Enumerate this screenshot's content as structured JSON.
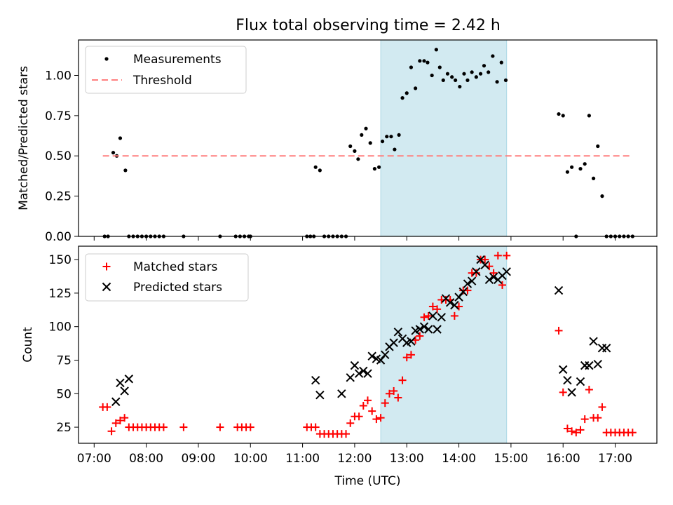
{
  "title": "Flux total observing time = 2.42 h",
  "colors": {
    "band": "#add8e6",
    "threshold": "#ff7f7f",
    "matched": "#ff0000",
    "predicted": "#000000",
    "measurement": "#000000"
  },
  "chart_data": [
    {
      "type": "scatter",
      "ylabel": "Matched/Predicted stars",
      "xlabel": "",
      "ylim": [
        0,
        1.22
      ],
      "yticks": [
        "0.00",
        "0.25",
        "0.50",
        "0.75",
        "1.00"
      ],
      "legend_position": "top-left",
      "legend": [
        "Measurements",
        "Threshold"
      ],
      "threshold": {
        "name": "Threshold",
        "y": 0.5,
        "x_start": "07:10",
        "x_end": "17:20"
      },
      "highlight": {
        "x_start": "12:30",
        "x_end": "14:55"
      },
      "series": [
        {
          "name": "Measurements",
          "x": [
            "07:12",
            "07:16",
            "07:22",
            "07:26",
            "07:30",
            "07:36",
            "07:40",
            "07:45",
            "07:50",
            "07:55",
            "08:00",
            "08:05",
            "08:10",
            "08:15",
            "08:20",
            "08:43",
            "09:25",
            "09:43",
            "09:48",
            "09:53",
            "09:58",
            "10:00",
            "11:05",
            "11:09",
            "11:13",
            "11:15",
            "11:20",
            "11:25",
            "11:30",
            "11:35",
            "11:40",
            "11:45",
            "11:50",
            "11:55",
            "12:00",
            "12:04",
            "12:08",
            "12:13",
            "12:18",
            "12:23",
            "12:28",
            "12:32",
            "12:37",
            "12:42",
            "12:46",
            "12:51",
            "12:55",
            "13:00",
            "13:05",
            "13:10",
            "13:15",
            "13:20",
            "13:24",
            "13:29",
            "13:34",
            "13:38",
            "13:42",
            "13:47",
            "13:52",
            "13:56",
            "14:01",
            "14:06",
            "14:10",
            "14:15",
            "14:20",
            "14:25",
            "14:29",
            "14:34",
            "14:39",
            "14:44",
            "14:49",
            "14:54",
            "15:55",
            "16:00",
            "16:05",
            "16:10",
            "16:15",
            "16:20",
            "16:25",
            "16:30",
            "16:35",
            "16:40",
            "16:45",
            "16:50",
            "16:55",
            "17:00",
            "17:05",
            "17:10",
            "17:15",
            "17:20"
          ],
          "y": [
            0,
            0,
            0.52,
            0.5,
            0.61,
            0.41,
            0,
            0,
            0,
            0,
            0,
            0,
            0,
            0,
            0,
            0,
            0,
            0,
            0,
            0,
            0,
            0,
            0,
            0,
            0,
            0.43,
            0.41,
            0,
            0,
            0,
            0,
            0,
            0,
            0.56,
            0.53,
            0.48,
            0.63,
            0.67,
            0.58,
            0.42,
            0.43,
            0.59,
            0.62,
            0.62,
            0.54,
            0.63,
            0.86,
            0.89,
            1.05,
            0.92,
            1.09,
            1.09,
            1.08,
            1.0,
            1.16,
            1.05,
            0.97,
            1.01,
            0.99,
            0.97,
            0.93,
            1.01,
            0.97,
            1.02,
            0.99,
            1.01,
            1.06,
            1.02,
            1.12,
            0.96,
            1.08,
            0.97,
            0.76,
            0.75,
            0.4,
            0.43,
            0,
            0.42,
            0.45,
            0.75,
            0.36,
            0.56,
            0.25,
            0,
            0,
            0,
            0,
            0,
            0,
            0
          ]
        }
      ]
    },
    {
      "type": "scatter",
      "xlabel": "Time (UTC)",
      "ylabel": "Count",
      "ylim": [
        13,
        160
      ],
      "yticks": [
        "25",
        "50",
        "75",
        "100",
        "125",
        "150"
      ],
      "xticks": [
        "07:00",
        "08:00",
        "09:00",
        "10:00",
        "11:00",
        "12:00",
        "13:00",
        "14:00",
        "15:00",
        "16:00",
        "17:00"
      ],
      "legend_position": "top-left",
      "legend": [
        "Matched stars",
        "Predicted stars"
      ],
      "highlight": {
        "x_start": "12:30",
        "x_end": "14:55"
      },
      "series": [
        {
          "name": "Matched stars",
          "x": [
            "07:10",
            "07:15",
            "07:20",
            "07:25",
            "07:30",
            "07:35",
            "07:40",
            "07:45",
            "07:50",
            "07:55",
            "08:00",
            "08:05",
            "08:10",
            "08:15",
            "08:20",
            "08:43",
            "09:25",
            "09:45",
            "09:50",
            "09:55",
            "10:00",
            "11:05",
            "11:10",
            "11:15",
            "11:20",
            "11:25",
            "11:30",
            "11:35",
            "11:40",
            "11:45",
            "11:50",
            "11:55",
            "12:00",
            "12:05",
            "12:10",
            "12:15",
            "12:20",
            "12:25",
            "12:30",
            "12:35",
            "12:40",
            "12:45",
            "12:50",
            "12:55",
            "13:00",
            "13:05",
            "13:10",
            "13:15",
            "13:20",
            "13:25",
            "13:30",
            "13:35",
            "13:40",
            "13:45",
            "13:50",
            "13:55",
            "14:00",
            "14:05",
            "14:10",
            "14:15",
            "14:20",
            "14:25",
            "14:30",
            "14:35",
            "14:40",
            "14:45",
            "14:50",
            "14:55",
            "15:55",
            "16:00",
            "16:05",
            "16:10",
            "16:15",
            "16:20",
            "16:25",
            "16:30",
            "16:35",
            "16:40",
            "16:45",
            "16:50",
            "16:55",
            "17:00",
            "17:05",
            "17:10",
            "17:15",
            "17:20"
          ],
          "y": [
            40,
            40,
            22,
            28,
            30,
            32,
            25,
            25,
            25,
            25,
            25,
            25,
            25,
            25,
            25,
            25,
            25,
            25,
            25,
            25,
            25,
            25,
            25,
            25,
            20,
            20,
            20,
            20,
            20,
            20,
            20,
            28,
            33,
            33,
            41,
            45,
            37,
            31,
            32,
            43,
            50,
            52,
            47,
            60,
            77,
            79,
            90,
            93,
            107,
            108,
            115,
            113,
            120,
            120,
            120,
            108,
            115,
            127,
            127,
            140,
            140,
            150,
            150,
            145,
            140,
            153,
            131,
            153,
            97,
            51,
            24,
            22,
            21,
            23,
            31,
            53,
            32,
            32,
            40,
            21,
            21,
            21,
            21,
            21,
            21,
            21
          ]
        },
        {
          "name": "Predicted stars",
          "x": [
            "07:25",
            "07:30",
            "07:35",
            "07:40",
            "11:15",
            "11:20",
            "11:45",
            "11:55",
            "12:00",
            "12:05",
            "12:10",
            "12:15",
            "12:20",
            "12:25",
            "12:30",
            "12:35",
            "12:40",
            "12:45",
            "12:50",
            "12:55",
            "13:00",
            "13:05",
            "13:10",
            "13:15",
            "13:20",
            "13:25",
            "13:30",
            "13:35",
            "13:40",
            "13:45",
            "13:50",
            "13:55",
            "14:00",
            "14:05",
            "14:10",
            "14:15",
            "14:20",
            "14:25",
            "14:30",
            "14:35",
            "14:40",
            "14:45",
            "14:50",
            "14:55",
            "15:55",
            "16:00",
            "16:05",
            "16:10",
            "16:20",
            "16:25",
            "16:30",
            "16:35",
            "16:40",
            "16:45",
            "16:50"
          ],
          "y": [
            44,
            58,
            52,
            61,
            60,
            49,
            50,
            62,
            71,
            65,
            67,
            65,
            78,
            76,
            75,
            79,
            85,
            88,
            96,
            91,
            88,
            89,
            97,
            98,
            100,
            98,
            108,
            98,
            107,
            121,
            118,
            116,
            122,
            126,
            132,
            134,
            141,
            150,
            146,
            135,
            137,
            135,
            138,
            141,
            127,
            68,
            60,
            51,
            59,
            71,
            71,
            89,
            72,
            84,
            84
          ]
        }
      ]
    }
  ]
}
